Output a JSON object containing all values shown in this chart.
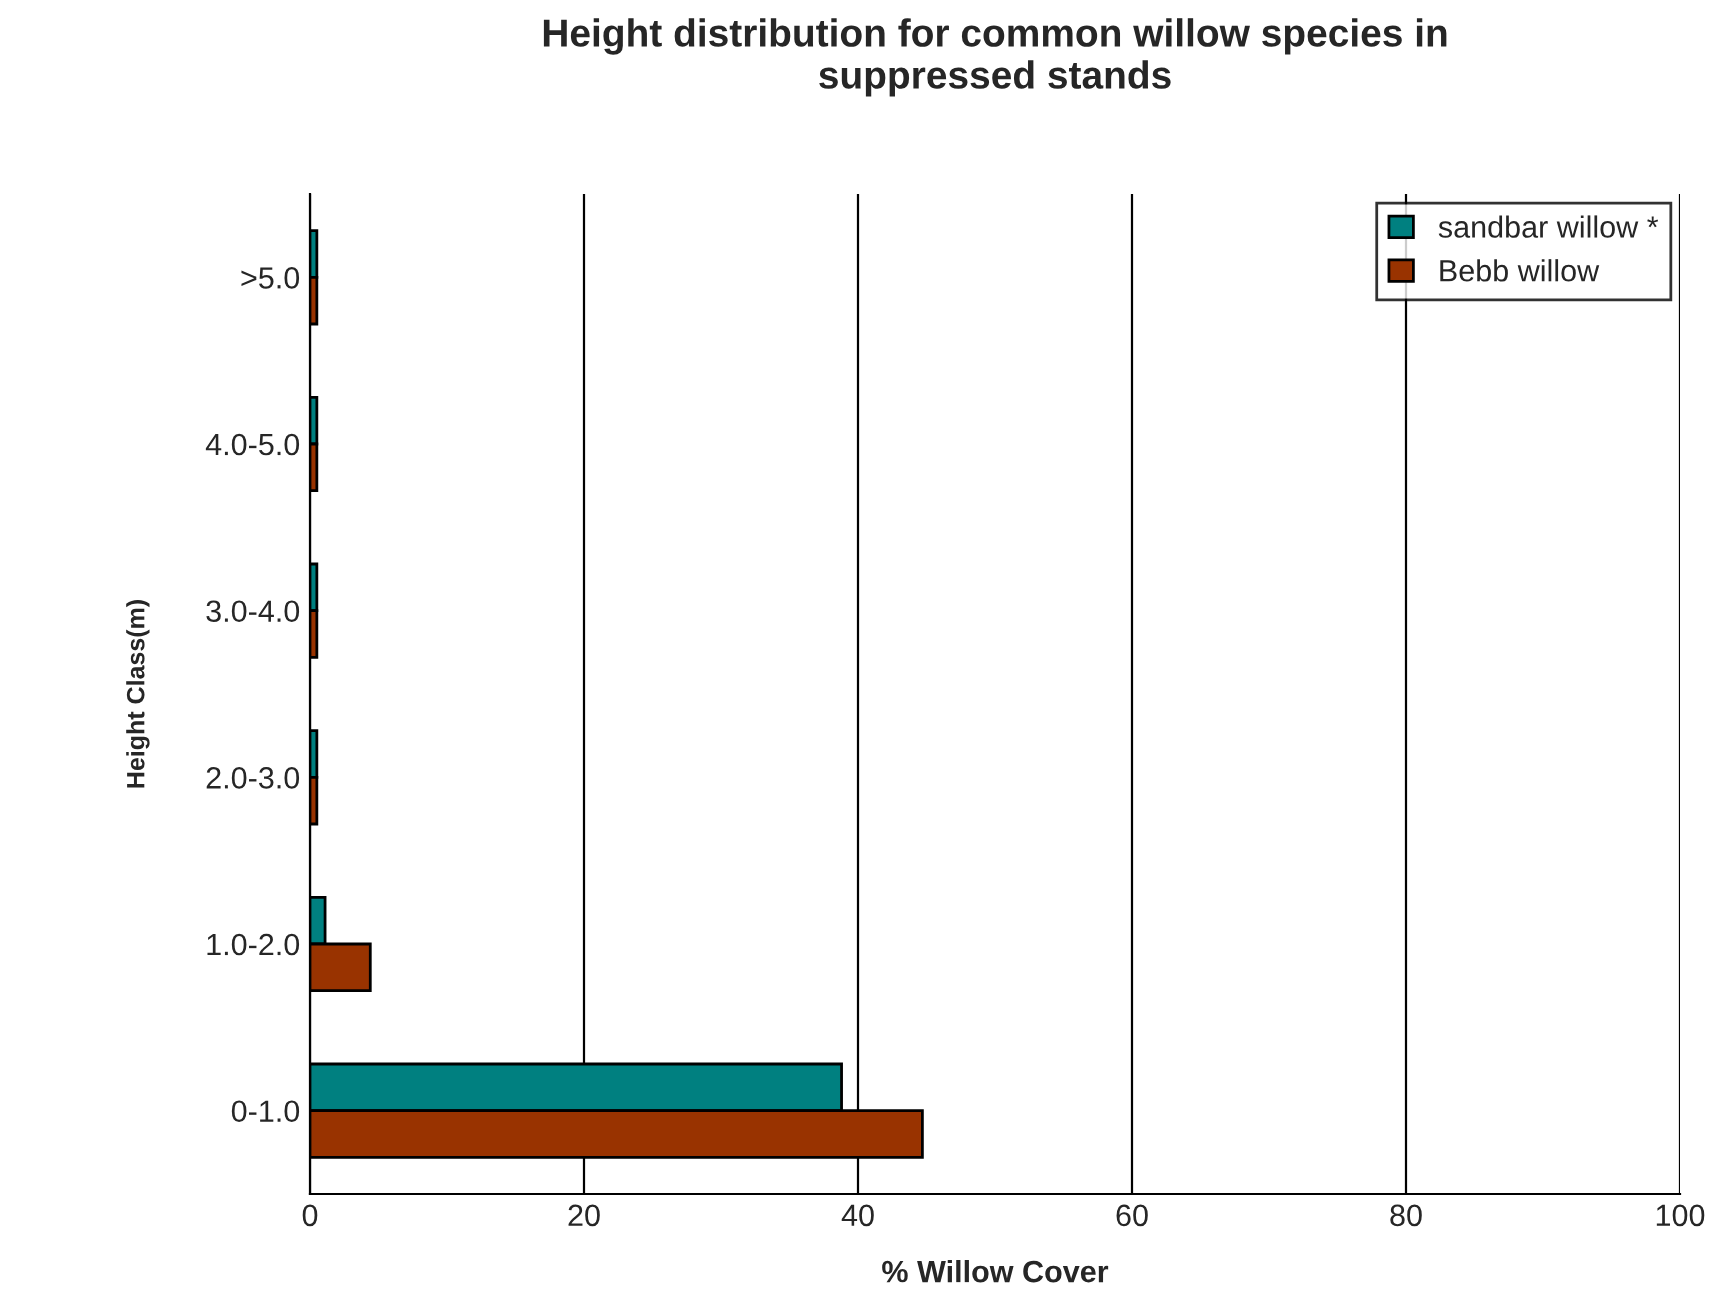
{
  "chart_data": {
    "type": "bar",
    "orientation": "horizontal",
    "title": "Height distribution for common willow species in\nsuppressed stands",
    "xlabel": "% Willow Cover",
    "ylabel": "Height Class(m)",
    "categories": [
      ">5.0",
      "4.0-5.0",
      "3.0-4.0",
      "2.0-3.0",
      "1.0-2.0",
      "0-1.0"
    ],
    "series": [
      {
        "name": "sandbar willow *",
        "color": "#008080",
        "values": [
          0.5,
          0.5,
          0.5,
          0.5,
          1.1,
          38.8
        ]
      },
      {
        "name": "Bebb willow",
        "color": "#993300",
        "values": [
          0.5,
          0.5,
          0.5,
          0.5,
          4.4,
          44.7
        ]
      }
    ],
    "xlim": [
      0,
      100
    ],
    "xticks": [
      0,
      20,
      40,
      60,
      80,
      100
    ],
    "grid": "x",
    "legend": "top right"
  }
}
